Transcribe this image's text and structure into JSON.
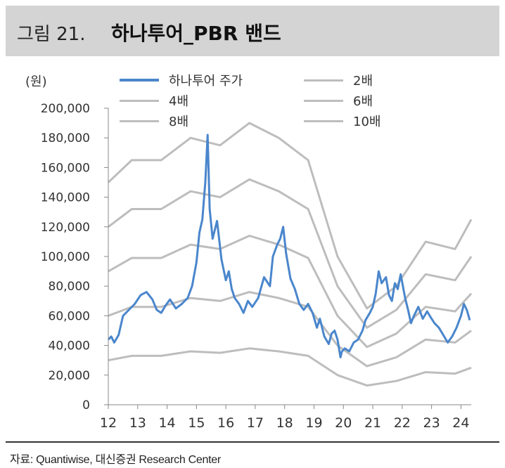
{
  "figure": {
    "number": "그림 21.",
    "title": "하나투어_PBR 밴드",
    "source": "자료: Quantiwise, 대신증권 Research Center"
  },
  "chart_data": {
    "type": "line",
    "unit_label": "(원)",
    "ylim": [
      0,
      200000
    ],
    "yticks": [
      0,
      20000,
      40000,
      60000,
      80000,
      100000,
      120000,
      140000,
      160000,
      180000,
      200000
    ],
    "ytick_labels": [
      "0",
      "20,000",
      "40,000",
      "60,000",
      "80,000",
      "100,000",
      "120,000",
      "140,000",
      "160,000",
      "180,000",
      "200,000"
    ],
    "xlim": [
      12,
      24.35
    ],
    "xticks": [
      12,
      13,
      14,
      15,
      16,
      17,
      18,
      19,
      20,
      21,
      22,
      23,
      24
    ],
    "xtick_labels": [
      "12",
      "13",
      "14",
      "15",
      "16",
      "17",
      "18",
      "19",
      "20",
      "21",
      "22",
      "23",
      "24"
    ],
    "grid": false,
    "legend_position": "top",
    "colors": {
      "stock": "#4a86cc",
      "band": "#bdbdbd"
    },
    "bvps": {
      "x": [
        12.0,
        12.8,
        13.8,
        14.8,
        15.8,
        16.8,
        17.8,
        18.8,
        19.8,
        20.8,
        21.8,
        22.8,
        23.8,
        24.35
      ],
      "values": [
        15000,
        16500,
        16500,
        18000,
        17500,
        19000,
        18000,
        16500,
        10000,
        6500,
        8000,
        11000,
        10500,
        12500
      ]
    },
    "series": [
      {
        "name": "하나투어 주가",
        "kind": "stock",
        "x": [
          12.0,
          12.1,
          12.2,
          12.35,
          12.5,
          12.7,
          12.9,
          13.1,
          13.3,
          13.5,
          13.65,
          13.8,
          13.95,
          14.1,
          14.3,
          14.5,
          14.7,
          14.85,
          15.0,
          15.1,
          15.2,
          15.3,
          15.38,
          15.45,
          15.55,
          15.7,
          15.85,
          16.0,
          16.1,
          16.2,
          16.3,
          16.45,
          16.6,
          16.75,
          16.9,
          17.1,
          17.3,
          17.5,
          17.6,
          17.75,
          17.85,
          17.95,
          18.05,
          18.2,
          18.35,
          18.5,
          18.65,
          18.8,
          18.95,
          19.1,
          19.2,
          19.35,
          19.5,
          19.6,
          19.7,
          19.8,
          19.9,
          19.95,
          20.05,
          20.2,
          20.35,
          20.5,
          20.65,
          20.75,
          20.9,
          21.0,
          21.1,
          21.2,
          21.3,
          21.45,
          21.55,
          21.65,
          21.75,
          21.85,
          21.95,
          22.1,
          22.2,
          22.3,
          22.4,
          22.55,
          22.7,
          22.85,
          23.0,
          23.1,
          23.25,
          23.4,
          23.55,
          23.7,
          23.85,
          24.0,
          24.1,
          24.2,
          24.3
        ],
        "values": [
          44000,
          46000,
          42000,
          47000,
          60000,
          64000,
          68000,
          74000,
          76000,
          71000,
          64000,
          62000,
          67000,
          71000,
          65000,
          68000,
          72000,
          80000,
          96000,
          116000,
          125000,
          150000,
          182000,
          132000,
          112000,
          124000,
          98000,
          84000,
          90000,
          78000,
          72000,
          68000,
          62000,
          70000,
          66000,
          72000,
          86000,
          80000,
          100000,
          108000,
          112000,
          120000,
          102000,
          85000,
          78000,
          68000,
          64000,
          68000,
          62000,
          52000,
          58000,
          46000,
          41000,
          48000,
          50000,
          44000,
          32000,
          36000,
          38000,
          36000,
          42000,
          44000,
          50000,
          57000,
          62000,
          66000,
          75000,
          90000,
          82000,
          86000,
          74000,
          70000,
          82000,
          78000,
          88000,
          72000,
          64000,
          55000,
          60000,
          66000,
          58000,
          63000,
          58000,
          55000,
          52000,
          47000,
          42000,
          46000,
          52000,
          60000,
          68000,
          64000,
          57000
        ]
      },
      {
        "name": "2배",
        "kind": "band",
        "multiple": 2
      },
      {
        "name": "4배",
        "kind": "band",
        "multiple": 4
      },
      {
        "name": "6배",
        "kind": "band",
        "multiple": 6
      },
      {
        "name": "8배",
        "kind": "band",
        "multiple": 8
      },
      {
        "name": "10배",
        "kind": "band",
        "multiple": 10
      }
    ]
  }
}
